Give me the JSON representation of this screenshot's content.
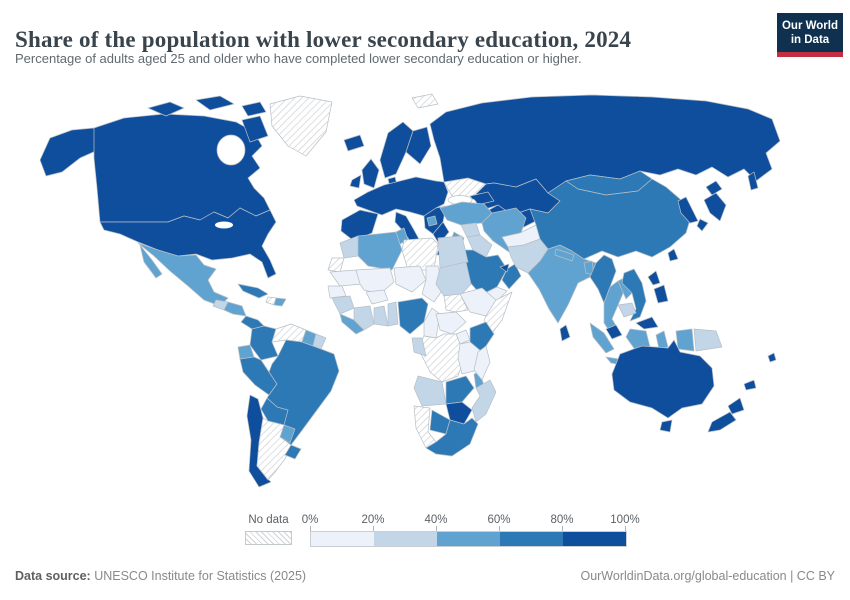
{
  "logo": {
    "line1": "Our World",
    "line2": "in Data",
    "bg_color": "#10304f",
    "accent_color": "#c22f43"
  },
  "footer": {
    "source_label": "Data source:",
    "source_value": " UNESCO Institute for Statistics (2025)",
    "right_text": "OurWorldinData.org/global-education | CC BY"
  },
  "chart_data": {
    "type": "choropleth_map",
    "title": "Share of the population with lower secondary education, 2024",
    "subtitle": "Percentage of adults aged 25 and older who have completed lower secondary education or higher.",
    "unit": "%",
    "legend": {
      "position": "bottom",
      "no_data_label": "No data",
      "ticks": [
        "0%",
        "20%",
        "40%",
        "60%",
        "80%",
        "100%"
      ]
    },
    "bins": [
      {
        "label": "0-20%",
        "color": "#edf1fa"
      },
      {
        "label": "20-40%",
        "color": "#c2d6e7"
      },
      {
        "label": "40-60%",
        "color": "#61a3d0"
      },
      {
        "label": "60-80%",
        "color": "#2d79b6"
      },
      {
        "label": "80-100%",
        "color": "#0f4e9c"
      },
      {
        "label": "No data",
        "color": "hatch"
      }
    ],
    "regions": [
      {
        "name": "Canada",
        "bin": "80-100%"
      },
      {
        "name": "United States",
        "bin": "80-100%"
      },
      {
        "name": "Greenland",
        "bin": "No data"
      },
      {
        "name": "Mexico",
        "bin": "40-60%"
      },
      {
        "name": "Guatemala",
        "bin": "20-40%"
      },
      {
        "name": "Honduras & Nicaragua",
        "bin": "40-60%"
      },
      {
        "name": "Costa Rica & Panama",
        "bin": "60-80%"
      },
      {
        "name": "Cuba",
        "bin": "60-80%"
      },
      {
        "name": "Haiti",
        "bin": "No data"
      },
      {
        "name": "Dominican Republic",
        "bin": "40-60%"
      },
      {
        "name": "Colombia",
        "bin": "60-80%"
      },
      {
        "name": "Venezuela",
        "bin": "No data"
      },
      {
        "name": "Guyana",
        "bin": "40-60%"
      },
      {
        "name": "Suriname",
        "bin": "20-40%"
      },
      {
        "name": "Ecuador",
        "bin": "40-60%"
      },
      {
        "name": "Peru",
        "bin": "60-80%"
      },
      {
        "name": "Brazil",
        "bin": "60-80%"
      },
      {
        "name": "Bolivia",
        "bin": "60-80%"
      },
      {
        "name": "Paraguay",
        "bin": "40-60%"
      },
      {
        "name": "Chile",
        "bin": "80-100%"
      },
      {
        "name": "Argentina",
        "bin": "No data"
      },
      {
        "name": "Uruguay",
        "bin": "60-80%"
      },
      {
        "name": "Svalbard",
        "bin": "No data"
      },
      {
        "name": "Iceland",
        "bin": "80-100%"
      },
      {
        "name": "Ireland",
        "bin": "80-100%"
      },
      {
        "name": "United Kingdom",
        "bin": "80-100%"
      },
      {
        "name": "Scandinavia",
        "bin": "80-100%"
      },
      {
        "name": "Finland",
        "bin": "80-100%"
      },
      {
        "name": "Denmark",
        "bin": "80-100%"
      },
      {
        "name": "Western & Central Europe",
        "bin": "80-100%"
      },
      {
        "name": "Spain & Portugal",
        "bin": "80-100%"
      },
      {
        "name": "Italy",
        "bin": "80-100%"
      },
      {
        "name": "Balkans",
        "bin": "80-100%"
      },
      {
        "name": "Bosnia & Herzegovina",
        "bin": "40-60%"
      },
      {
        "name": "Greece",
        "bin": "80-100%"
      },
      {
        "name": "Ukraine",
        "bin": "No data"
      },
      {
        "name": "Russia",
        "bin": "80-100%"
      },
      {
        "name": "Kazakhstan",
        "bin": "80-100%"
      },
      {
        "name": "Uzbekistan & Turkmenistan",
        "bin": "80-100%"
      },
      {
        "name": "Caucasus",
        "bin": "80-100%"
      },
      {
        "name": "Turkey",
        "bin": "40-60%"
      },
      {
        "name": "Syria",
        "bin": "20-40%"
      },
      {
        "name": "Jordan",
        "bin": "40-60%"
      },
      {
        "name": "Iraq",
        "bin": "20-40%"
      },
      {
        "name": "Iran",
        "bin": "40-60%"
      },
      {
        "name": "Saudi Arabia",
        "bin": "60-80%"
      },
      {
        "name": "Yemen",
        "bin": "0-20%"
      },
      {
        "name": "Oman",
        "bin": "60-80%"
      },
      {
        "name": "United Arab Emirates",
        "bin": "80-100%"
      },
      {
        "name": "Afghanistan",
        "bin": "0-20%"
      },
      {
        "name": "Pakistan",
        "bin": "20-40%"
      },
      {
        "name": "India",
        "bin": "40-60%"
      },
      {
        "name": "Nepal",
        "bin": "40-60%"
      },
      {
        "name": "Bangladesh",
        "bin": "40-60%"
      },
      {
        "name": "Sri Lanka",
        "bin": "80-100%"
      },
      {
        "name": "Mongolia",
        "bin": "60-80%"
      },
      {
        "name": "China",
        "bin": "60-80%"
      },
      {
        "name": "North & South Korea",
        "bin": "80-100%"
      },
      {
        "name": "Japan",
        "bin": "80-100%"
      },
      {
        "name": "Taiwan",
        "bin": "80-100%"
      },
      {
        "name": "Myanmar",
        "bin": "60-80%"
      },
      {
        "name": "Thailand",
        "bin": "40-60%"
      },
      {
        "name": "Laos",
        "bin": "40-60%"
      },
      {
        "name": "Vietnam",
        "bin": "60-80%"
      },
      {
        "name": "Cambodia",
        "bin": "20-40%"
      },
      {
        "name": "Malaysia",
        "bin": "80-100%"
      },
      {
        "name": "Indonesia",
        "bin": "40-60%"
      },
      {
        "name": "Papua New Guinea",
        "bin": "20-40%"
      },
      {
        "name": "Philippines",
        "bin": "80-100%"
      },
      {
        "name": "Morocco",
        "bin": "20-40%"
      },
      {
        "name": "Algeria",
        "bin": "40-60%"
      },
      {
        "name": "Tunisia",
        "bin": "40-60%"
      },
      {
        "name": "Libya",
        "bin": "No data"
      },
      {
        "name": "Egypt",
        "bin": "20-40%"
      },
      {
        "name": "Western Sahara",
        "bin": "No data"
      },
      {
        "name": "Mauritania",
        "bin": "0-20%"
      },
      {
        "name": "Mali",
        "bin": "0-20%"
      },
      {
        "name": "Burkina Faso",
        "bin": "0-20%"
      },
      {
        "name": "Niger",
        "bin": "0-20%"
      },
      {
        "name": "Chad",
        "bin": "0-20%"
      },
      {
        "name": "Sudan",
        "bin": "20-40%"
      },
      {
        "name": "Senegal",
        "bin": "0-20%"
      },
      {
        "name": "Guinea",
        "bin": "20-40%"
      },
      {
        "name": "Sierra Leone & Liberia",
        "bin": "40-60%"
      },
      {
        "name": "Côte d'Ivoire",
        "bin": "20-40%"
      },
      {
        "name": "Ghana",
        "bin": "20-40%"
      },
      {
        "name": "Togo & Benin",
        "bin": "20-40%"
      },
      {
        "name": "Nigeria",
        "bin": "60-80%"
      },
      {
        "name": "Cameroon",
        "bin": "0-20%"
      },
      {
        "name": "Central African Republic",
        "bin": "0-20%"
      },
      {
        "name": "South Sudan",
        "bin": "No data"
      },
      {
        "name": "Ethiopia",
        "bin": "0-20%"
      },
      {
        "name": "Somalia",
        "bin": "No data"
      },
      {
        "name": "Uganda",
        "bin": "0-20%"
      },
      {
        "name": "Kenya",
        "bin": "60-80%"
      },
      {
        "name": "Democratic Republic of Congo",
        "bin": "No data"
      },
      {
        "name": "Tanzania",
        "bin": "0-20%"
      },
      {
        "name": "Gabon & Congo",
        "bin": "20-40%"
      },
      {
        "name": "Angola",
        "bin": "20-40%"
      },
      {
        "name": "Zambia",
        "bin": "60-80%"
      },
      {
        "name": "Malawi",
        "bin": "40-60%"
      },
      {
        "name": "Mozambique",
        "bin": "20-40%"
      },
      {
        "name": "Zimbabwe",
        "bin": "80-100%"
      },
      {
        "name": "Botswana",
        "bin": "60-80%"
      },
      {
        "name": "Namibia",
        "bin": "No data"
      },
      {
        "name": "South Africa",
        "bin": "60-80%"
      },
      {
        "name": "Madagascar",
        "bin": "0-20%"
      },
      {
        "name": "Australia",
        "bin": "80-100%"
      },
      {
        "name": "New Zealand",
        "bin": "80-100%"
      },
      {
        "name": "New Caledonia",
        "bin": "80-100%"
      },
      {
        "name": "Fiji",
        "bin": "80-100%"
      }
    ]
  }
}
